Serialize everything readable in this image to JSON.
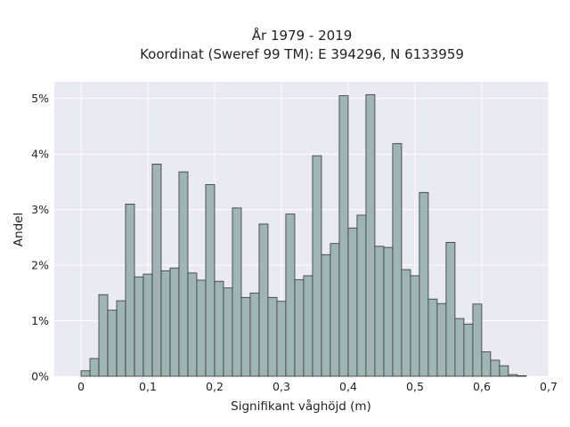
{
  "chart_data": {
    "type": "bar",
    "title": "År 1979 - 2019",
    "subtitle": "Koordinat (Sweref 99 TM): E 394296, N 6133959",
    "xlabel": "Signifikant våghöjd (m)",
    "ylabel": "Andel",
    "xlim": [
      -0.04,
      0.7
    ],
    "ylim": [
      0,
      5.3
    ],
    "x_ticks": [
      0,
      0.1,
      0.2,
      0.3,
      0.4,
      0.5,
      0.6,
      0.7
    ],
    "x_tick_labels": [
      "0",
      "0,1",
      "0,2",
      "0,3",
      "0,4",
      "0,5",
      "0,6",
      "0,7"
    ],
    "y_ticks": [
      0,
      1,
      2,
      3,
      4,
      5
    ],
    "y_tick_labels": [
      "0%",
      "1%",
      "2%",
      "3%",
      "4%",
      "5%"
    ],
    "bin_width": 0.01333,
    "bin_edges_start": 0,
    "values": [
      0.1,
      0.32,
      1.47,
      1.19,
      1.36,
      3.1,
      1.79,
      1.84,
      3.82,
      1.9,
      1.95,
      3.68,
      1.86,
      1.73,
      3.45,
      1.71,
      1.59,
      3.03,
      1.42,
      1.5,
      2.74,
      1.42,
      1.35,
      2.92,
      1.74,
      1.81,
      3.97,
      2.19,
      2.39,
      5.05,
      2.67,
      2.9,
      5.07,
      2.34,
      2.32,
      4.19,
      1.92,
      1.81,
      3.31,
      1.39,
      1.31,
      2.41,
      1.04,
      0.94,
      1.3,
      0.44,
      0.29,
      0.19,
      0.03,
      0.01
    ],
    "grid": true,
    "background": "#eaeaf2",
    "bar_color": "#9fb5b5",
    "bar_edge_color": "#333333"
  }
}
